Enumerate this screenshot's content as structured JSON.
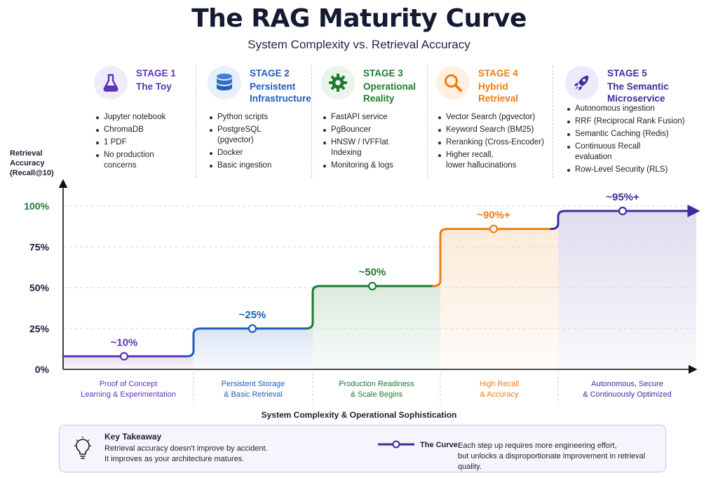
{
  "title": "The RAG Maturity Curve",
  "subtitle": "System Complexity vs. Retrieval Accuracy",
  "stages": [
    {
      "label": "STAGE 1",
      "name_lines": [
        "The Toy"
      ],
      "icon": "flask-icon",
      "color": "#5b35b8",
      "bullets": [
        "Jupyter notebook",
        "ChromaDB",
        "1 PDF",
        "No production\nconcerns"
      ]
    },
    {
      "label": "STAGE 2",
      "name_lines": [
        "Persistent",
        "Infrastructure"
      ],
      "icon": "database-icon",
      "color": "#1f5cbf",
      "bullets": [
        "Python scripts",
        "PostgreSQL\n(pgvector)",
        "Docker",
        "Basic ingestion"
      ]
    },
    {
      "label": "STAGE 3",
      "name_lines": [
        "Operational",
        "Reality"
      ],
      "icon": "gear-icon",
      "color": "#1e7b2f",
      "bullets": [
        "FastAPI service",
        "PgBouncer",
        "HNSW / IVFFlat\nIndexing",
        "Monitoring & logs"
      ]
    },
    {
      "label": "STAGE 4",
      "name_lines": [
        "Hybrid",
        "Retrieval"
      ],
      "icon": "magnifier-icon",
      "color": "#ef7d12",
      "bullets": [
        "Vector Search (pgvector)",
        "Keyword Search (BM25)",
        "Reranking (Cross-Encoder)",
        "Higher recall,\nlower hallucinations"
      ]
    },
    {
      "label": "STAGE 5",
      "name_lines": [
        "The Semantic",
        "Microservice"
      ],
      "icon": "rocket-icon",
      "color": "#3d2c9e",
      "bullets": [
        "Autonomous ingestion",
        "RRF (Reciprocal Rank Fusion)",
        "Semantic Caching (Redis)",
        "Continuous Recall\nevaluation",
        "Row-Level Security (RLS)"
      ]
    }
  ],
  "chart_data": {
    "type": "line",
    "ylabel": "Retrieval\nAccuracy\n(Recall@10)",
    "xlabel": "System Complexity & Operational Sophistication",
    "ylim": [
      0,
      100
    ],
    "yticks": [
      "0%",
      "25%",
      "50%",
      "75%",
      "100%"
    ],
    "ytick_values": [
      0,
      25,
      50,
      75,
      100
    ],
    "categories": [
      "Proof of Concept\nLearning & Experimentation",
      "Persistent Storage\n& Basic Retrieval",
      "Production Readiness\n& Scale Begins",
      "High Recall\n& Accuracy",
      "Autonomous, Secure\n& Continuously Optimized"
    ],
    "values": [
      10,
      25,
      50,
      90,
      95
    ],
    "curve_levels": [
      8,
      25,
      51,
      86,
      97
    ],
    "value_labels": [
      "~10%",
      "~25%",
      "~50%",
      "~90%+",
      "~95%+"
    ],
    "colors": [
      "#5b35b8",
      "#1f5cbf",
      "#1e7b2f",
      "#ef7d12",
      "#3d2c9e"
    ],
    "grid": true
  },
  "takeaway": {
    "heading": "Key Takeaway",
    "text": "Retrieval accuracy doesn't improve by accident.\nIt improves as your architecture matures.",
    "curve_label": "The Curve:",
    "curve_text": "Each step up requires more engineering effort,\nbut unlocks a disproportionate improvement in retrieval quality."
  }
}
